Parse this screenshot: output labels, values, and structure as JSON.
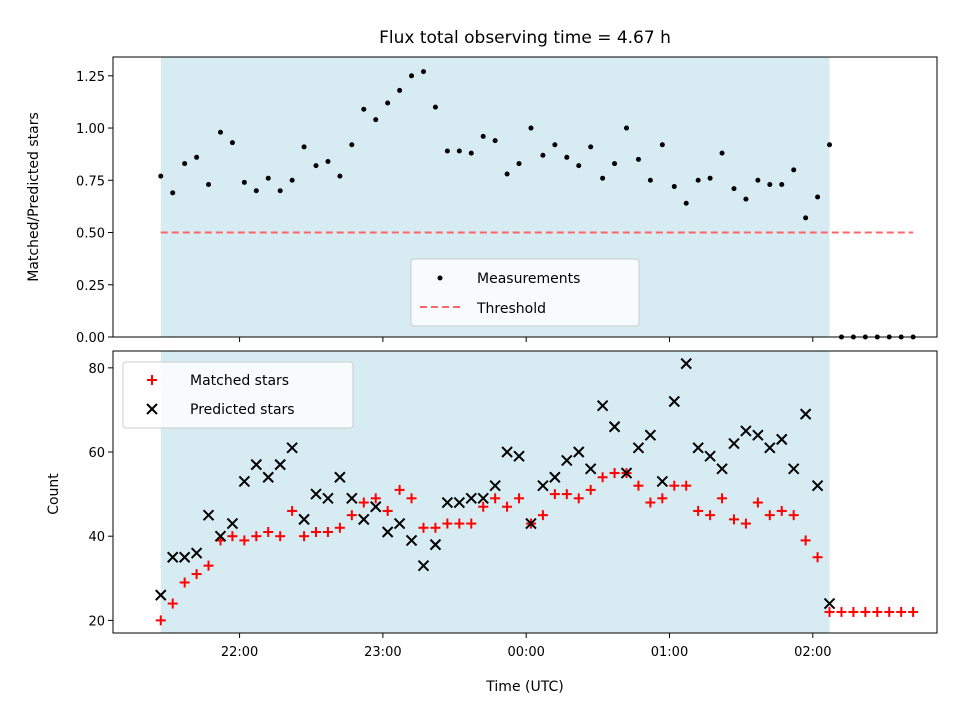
{
  "chart_data": [
    {
      "type": "scatter",
      "title": "Flux total observing time = 4.67 h",
      "ylabel": "Matched/Predicted stars",
      "xlabel": "",
      "ylim": [
        0,
        1.34
      ],
      "yticks": [
        0,
        0.25,
        0.5,
        0.75,
        1.0,
        1.25
      ],
      "ytick_labels": [
        "0.00",
        "0.25",
        "0.50",
        "0.75",
        "1.00",
        "1.25"
      ],
      "shaded_interval": [
        "21:27",
        "02:07"
      ],
      "legend": {
        "placement": "lower-center",
        "entries": [
          "Measurements",
          "Threshold"
        ]
      },
      "series": [
        {
          "name": "Measurements",
          "color": "#000000",
          "marker": "dot",
          "x": [
            "21:27",
            "21:32",
            "21:37",
            "21:42",
            "21:47",
            "21:52",
            "21:57",
            "22:02",
            "22:07",
            "22:12",
            "22:17",
            "22:22",
            "22:27",
            "22:32",
            "22:37",
            "22:42",
            "22:47",
            "22:52",
            "22:57",
            "23:02",
            "23:07",
            "23:12",
            "23:17",
            "23:22",
            "23:27",
            "23:32",
            "23:37",
            "23:42",
            "23:47",
            "23:52",
            "23:57",
            "00:02",
            "00:07",
            "00:12",
            "00:17",
            "00:22",
            "00:27",
            "00:32",
            "00:37",
            "00:42",
            "00:47",
            "00:52",
            "00:57",
            "01:02",
            "01:07",
            "01:12",
            "01:17",
            "01:22",
            "01:27",
            "01:32",
            "01:37",
            "01:42",
            "01:47",
            "01:52",
            "01:57",
            "02:02",
            "02:07",
            "02:12",
            "02:17",
            "02:22",
            "02:27",
            "02:32",
            "02:37",
            "02:42"
          ],
          "y": [
            0.77,
            0.69,
            0.83,
            0.86,
            0.73,
            0.98,
            0.93,
            0.74,
            0.7,
            0.76,
            0.7,
            0.75,
            0.91,
            0.82,
            0.84,
            0.77,
            0.92,
            1.09,
            1.04,
            1.12,
            1.18,
            1.25,
            1.27,
            1.1,
            0.89,
            0.89,
            0.88,
            0.96,
            0.94,
            0.78,
            0.83,
            1.0,
            0.87,
            0.92,
            0.86,
            0.82,
            0.91,
            0.76,
            0.83,
            1.0,
            0.85,
            0.75,
            0.92,
            0.72,
            0.64,
            0.75,
            0.76,
            0.88,
            0.71,
            0.66,
            0.75,
            0.73,
            0.73,
            0.8,
            0.57,
            0.67,
            0.92,
            0.0,
            0.0,
            0.0,
            0.0,
            0.0,
            0.0,
            0.0
          ]
        },
        {
          "name": "Threshold",
          "color": "#ff6666",
          "style": "dashed",
          "x": [
            "21:27",
            "02:42"
          ],
          "y": [
            0.5,
            0.5
          ]
        }
      ]
    },
    {
      "type": "scatter",
      "xlabel": "Time (UTC)",
      "ylabel": "Count",
      "ylim": [
        17,
        84
      ],
      "yticks": [
        20,
        40,
        60,
        80
      ],
      "xticks": [
        "22:00",
        "23:00",
        "00:00",
        "01:00",
        "02:00"
      ],
      "shaded_interval": [
        "21:27",
        "02:07"
      ],
      "legend": {
        "placement": "top-left",
        "entries": [
          "Matched stars",
          "Predicted stars"
        ]
      },
      "series": [
        {
          "name": "Matched stars",
          "color": "#ff0000",
          "marker": "plus",
          "x": [
            "21:27",
            "21:32",
            "21:37",
            "21:42",
            "21:47",
            "21:52",
            "21:57",
            "22:02",
            "22:07",
            "22:12",
            "22:17",
            "22:22",
            "22:27",
            "22:32",
            "22:37",
            "22:42",
            "22:47",
            "22:52",
            "22:57",
            "23:02",
            "23:07",
            "23:12",
            "23:17",
            "23:22",
            "23:27",
            "23:32",
            "23:37",
            "23:42",
            "23:47",
            "23:52",
            "23:57",
            "00:02",
            "00:07",
            "00:12",
            "00:17",
            "00:22",
            "00:27",
            "00:32",
            "00:37",
            "00:42",
            "00:47",
            "00:52",
            "00:57",
            "01:02",
            "01:07",
            "01:12",
            "01:17",
            "01:22",
            "01:27",
            "01:32",
            "01:37",
            "01:42",
            "01:47",
            "01:52",
            "01:57",
            "02:02",
            "02:07",
            "02:12",
            "02:17",
            "02:22",
            "02:27",
            "02:32",
            "02:37",
            "02:42"
          ],
          "y": [
            20,
            24,
            29,
            31,
            33,
            39,
            40,
            39,
            40,
            41,
            40,
            46,
            40,
            41,
            41,
            42,
            45,
            48,
            49,
            46,
            51,
            49,
            42,
            42,
            43,
            43,
            43,
            47,
            49,
            47,
            49,
            43,
            45,
            50,
            50,
            49,
            51,
            54,
            55,
            55,
            52,
            48,
            49,
            52,
            52,
            46,
            45,
            49,
            44,
            43,
            48,
            45,
            46,
            45,
            39,
            35,
            22,
            22,
            22,
            22,
            22,
            22,
            22,
            22
          ]
        },
        {
          "name": "Predicted stars",
          "color": "#000000",
          "marker": "x",
          "x": [
            "21:27",
            "21:32",
            "21:37",
            "21:42",
            "21:47",
            "21:52",
            "21:57",
            "22:02",
            "22:07",
            "22:12",
            "22:17",
            "22:22",
            "22:27",
            "22:32",
            "22:37",
            "22:42",
            "22:47",
            "22:52",
            "22:57",
            "23:02",
            "23:07",
            "23:12",
            "23:17",
            "23:22",
            "23:27",
            "23:32",
            "23:37",
            "23:42",
            "23:47",
            "23:52",
            "23:57",
            "00:02",
            "00:07",
            "00:12",
            "00:17",
            "00:22",
            "00:27",
            "00:32",
            "00:37",
            "00:42",
            "00:47",
            "00:52",
            "00:57",
            "01:02",
            "01:07",
            "01:12",
            "01:17",
            "01:22",
            "01:27",
            "01:32",
            "01:37",
            "01:42",
            "01:47",
            "01:52",
            "01:57",
            "02:02",
            "02:07"
          ],
          "y": [
            26,
            35,
            35,
            36,
            45,
            40,
            43,
            53,
            57,
            54,
            57,
            61,
            44,
            50,
            49,
            54,
            49,
            44,
            47,
            41,
            43,
            39,
            33,
            38,
            48,
            48,
            49,
            49,
            52,
            60,
            59,
            43,
            52,
            54,
            58,
            60,
            56,
            71,
            66,
            55,
            61,
            64,
            53,
            72,
            81,
            61,
            59,
            56,
            62,
            65,
            64,
            61,
            63,
            56,
            69,
            52,
            24
          ]
        }
      ]
    }
  ]
}
